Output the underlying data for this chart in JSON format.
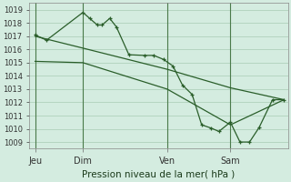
{
  "xlabel": "Pression niveau de la mer( hPa )",
  "bg_color": "#d4ece0",
  "grid_color": "#a8ccb4",
  "line_color": "#2a5e2a",
  "vline_color": "#4a7a4a",
  "ylim": [
    1008.5,
    1019.5
  ],
  "yticks": [
    1009,
    1010,
    1011,
    1012,
    1013,
    1014,
    1015,
    1016,
    1017,
    1018,
    1019
  ],
  "xlim": [
    0,
    13.5
  ],
  "xtick_positions": [
    0.3,
    2.8,
    7.2,
    10.5
  ],
  "xtick_labels": [
    "Jeu",
    "Dim",
    "Ven",
    "Sam"
  ],
  "vline_positions": [
    0.3,
    2.8,
    7.2,
    10.5
  ],
  "line1_x": [
    0.3,
    0.9,
    2.8,
    3.15,
    3.55,
    3.8,
    4.2,
    4.55,
    5.2,
    6.0,
    6.5,
    7.0,
    7.5,
    8.0,
    8.5,
    9.0,
    9.5,
    9.9,
    10.5,
    11.0,
    11.5,
    12.0,
    12.7,
    13.3
  ],
  "line1_y": [
    1017.1,
    1016.7,
    1018.8,
    1018.35,
    1017.85,
    1017.85,
    1018.35,
    1017.7,
    1015.6,
    1015.55,
    1015.55,
    1015.25,
    1014.75,
    1013.3,
    1012.6,
    1010.3,
    1010.05,
    1009.8,
    1010.5,
    1009.0,
    1009.0,
    1010.1,
    1012.2,
    1012.2
  ],
  "line2_x": [
    0.3,
    2.8,
    7.2,
    10.5,
    13.3
  ],
  "line2_y": [
    1017.0,
    1016.1,
    1014.5,
    1013.1,
    1012.2
  ],
  "line3_x": [
    0.3,
    2.8,
    7.2,
    10.5,
    13.3
  ],
  "line3_y": [
    1015.1,
    1015.0,
    1013.0,
    1010.3,
    1012.2
  ]
}
